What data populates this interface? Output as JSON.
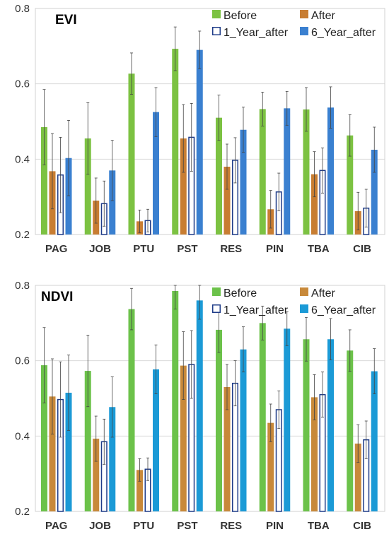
{
  "chart_data": [
    {
      "type": "bar",
      "title": "EVI",
      "categories": [
        "PAG",
        "JOB",
        "PTU",
        "PST",
        "RES",
        "PIN",
        "TBA",
        "CIB"
      ],
      "ylim": [
        0.2,
        0.8
      ],
      "yticks": [
        "0.2",
        "0.4",
        "0.6",
        "0.8"
      ],
      "grid": true,
      "legend_position": "top-right",
      "series": [
        {
          "name": "Before",
          "color": "#7cc242",
          "style": "solid",
          "values": [
            0.485,
            0.455,
            0.627,
            0.693,
            0.51,
            0.533,
            0.532,
            0.463
          ],
          "error": [
            0.1,
            0.095,
            0.055,
            0.058,
            0.06,
            0.045,
            0.058,
            0.055
          ]
        },
        {
          "name": "After",
          "color": "#c87d32",
          "style": "solid",
          "values": [
            0.368,
            0.29,
            0.235,
            0.455,
            0.38,
            0.267,
            0.36,
            0.262
          ],
          "error": [
            0.1,
            0.06,
            0.03,
            0.09,
            0.06,
            0.05,
            0.06,
            0.05
          ]
        },
        {
          "name": "1_Year_after",
          "color": "#1f3c88",
          "style": "outline",
          "values": [
            0.358,
            0.282,
            0.237,
            0.458,
            0.397,
            0.313,
            0.37,
            0.27
          ],
          "error": [
            0.1,
            0.06,
            0.03,
            0.09,
            0.06,
            0.05,
            0.06,
            0.05
          ]
        },
        {
          "name": "6_Year_after",
          "color": "#3a80d0",
          "style": "solid",
          "values": [
            0.403,
            0.37,
            0.525,
            0.69,
            0.478,
            0.535,
            0.537,
            0.425
          ],
          "error": [
            0.1,
            0.08,
            0.065,
            0.05,
            0.06,
            0.045,
            0.055,
            0.06
          ]
        }
      ]
    },
    {
      "type": "bar",
      "title": "NDVI",
      "categories": [
        "PAG",
        "JOB",
        "PTU",
        "PST",
        "RES",
        "PIN",
        "TBA",
        "CIB"
      ],
      "ylim": [
        0.2,
        0.8
      ],
      "yticks": [
        "0.2",
        "0.4",
        "0.6",
        "0.8"
      ],
      "grid": true,
      "legend_position": "top-right",
      "series": [
        {
          "name": "Before",
          "color": "#6cc24a",
          "style": "solid",
          "values": [
            0.588,
            0.573,
            0.737,
            0.785,
            0.682,
            0.7,
            0.657,
            0.627
          ],
          "error": [
            0.1,
            0.095,
            0.055,
            0.048,
            0.06,
            0.045,
            0.058,
            0.055
          ]
        },
        {
          "name": "After",
          "color": "#c8893a",
          "style": "solid",
          "values": [
            0.505,
            0.393,
            0.31,
            0.587,
            0.53,
            0.435,
            0.503,
            0.38
          ],
          "error": [
            0.1,
            0.06,
            0.03,
            0.09,
            0.06,
            0.05,
            0.06,
            0.05
          ]
        },
        {
          "name": "1_Year_after",
          "color": "#1f3c88",
          "style": "outline",
          "values": [
            0.497,
            0.385,
            0.312,
            0.59,
            0.54,
            0.47,
            0.51,
            0.39
          ],
          "error": [
            0.1,
            0.06,
            0.03,
            0.09,
            0.06,
            0.05,
            0.06,
            0.05
          ]
        },
        {
          "name": "6_Year_after",
          "color": "#1b9ad6",
          "style": "solid",
          "values": [
            0.515,
            0.477,
            0.577,
            0.76,
            0.63,
            0.685,
            0.657,
            0.572
          ],
          "error": [
            0.1,
            0.08,
            0.065,
            0.05,
            0.06,
            0.045,
            0.055,
            0.06
          ]
        }
      ]
    }
  ]
}
